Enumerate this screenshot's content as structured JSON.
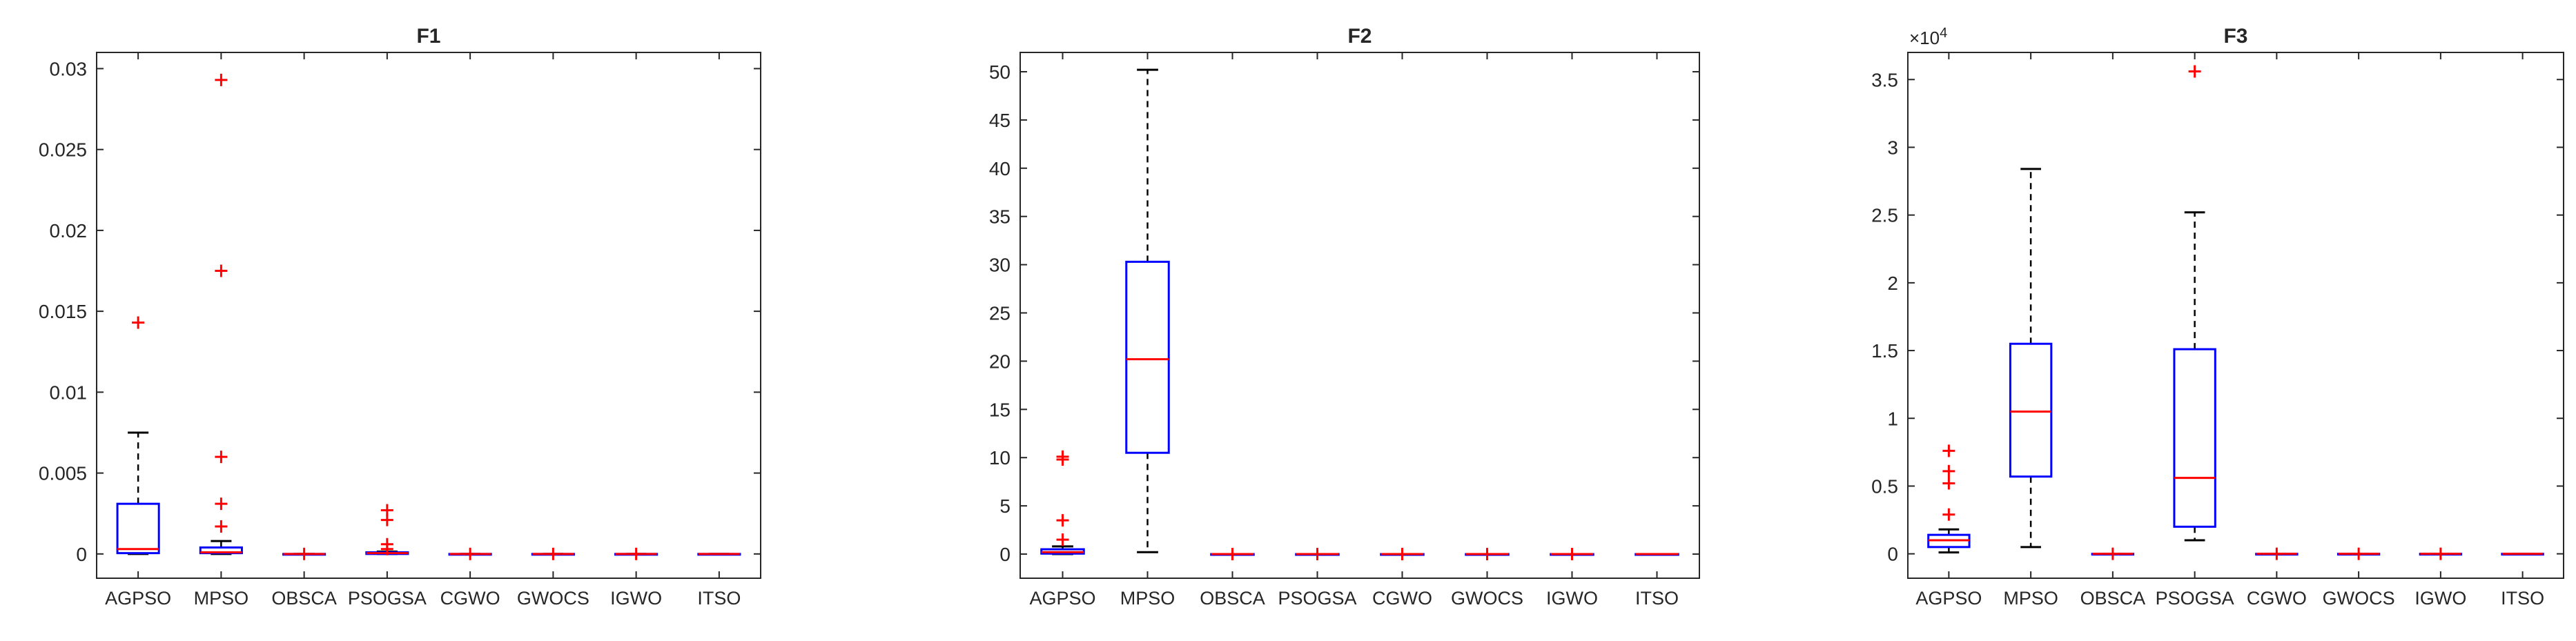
{
  "colors": {
    "box": "#0000ff",
    "median": "#ff0000",
    "outlier": "#ff0000",
    "whisker": "#000000",
    "axis": "#262626"
  },
  "chart_data": [
    {
      "type": "boxplot",
      "title": "F1",
      "xlabel": "",
      "ylabel": "",
      "exponent_label": "",
      "categories": [
        "AGPSO",
        "MPSO",
        "OBSCA",
        "PSOGSA",
        "CGWO",
        "GWOCS",
        "IGWO",
        "ITSO"
      ],
      "ylim": [
        -0.0015,
        0.031
      ],
      "yticks": [
        0,
        0.005,
        0.01,
        0.015,
        0.02,
        0.025,
        0.03
      ],
      "ytick_labels": [
        "0",
        "0.005",
        "0.01",
        "0.015",
        "0.02",
        "0.025",
        "0.03"
      ],
      "grid": false,
      "boxes": [
        {
          "whislo": 0,
          "q1": 5e-05,
          "med": 0.0003,
          "q3": 0.0031,
          "whishi": 0.0075,
          "fliers": [
            0.0143
          ]
        },
        {
          "whislo": 0,
          "q1": 5e-05,
          "med": 0.0001,
          "q3": 0.0004,
          "whishi": 0.0008,
          "fliers": [
            0.0017,
            0.0031,
            0.006,
            0.0175,
            0.0293
          ]
        },
        {
          "whislo": 0,
          "q1": 0,
          "med": 0,
          "q3": 0,
          "whishi": 0,
          "fliers": [
            0
          ]
        },
        {
          "whislo": 0,
          "q1": 0,
          "med": 5e-05,
          "q3": 0.0001,
          "whishi": 0.00015,
          "fliers": [
            0.0003,
            0.0006,
            0.0021,
            0.0027
          ]
        },
        {
          "whislo": 0,
          "q1": 0,
          "med": 0,
          "q3": 0,
          "whishi": 0,
          "fliers": [
            0
          ]
        },
        {
          "whislo": 0,
          "q1": 0,
          "med": 0,
          "q3": 0,
          "whishi": 0,
          "fliers": [
            0
          ]
        },
        {
          "whislo": 0,
          "q1": 0,
          "med": 0,
          "q3": 0,
          "whishi": 0,
          "fliers": [
            0
          ]
        },
        {
          "whislo": 0,
          "q1": 0,
          "med": 0,
          "q3": 0,
          "whishi": 0,
          "fliers": []
        }
      ]
    },
    {
      "type": "boxplot",
      "title": "F2",
      "xlabel": "",
      "ylabel": "",
      "exponent_label": "",
      "categories": [
        "AGPSO",
        "MPSO",
        "OBSCA",
        "PSOGSA",
        "CGWO",
        "GWOCS",
        "IGWO",
        "ITSO"
      ],
      "ylim": [
        -2.5,
        52
      ],
      "yticks": [
        0,
        5,
        10,
        15,
        20,
        25,
        30,
        35,
        40,
        45,
        50
      ],
      "ytick_labels": [
        "0",
        "5",
        "10",
        "15",
        "20",
        "25",
        "30",
        "35",
        "40",
        "45",
        "50"
      ],
      "grid": false,
      "boxes": [
        {
          "whislo": 0,
          "q1": 0.05,
          "med": 0.2,
          "q3": 0.5,
          "whishi": 0.8,
          "fliers": [
            1.5,
            3.5,
            9.8,
            10.1
          ]
        },
        {
          "whislo": 0.2,
          "q1": 10.5,
          "med": 20.2,
          "q3": 30.3,
          "whishi": 50.2,
          "fliers": []
        },
        {
          "whislo": 0,
          "q1": 0,
          "med": 0,
          "q3": 0,
          "whishi": 0,
          "fliers": [
            0
          ]
        },
        {
          "whislo": 0,
          "q1": 0,
          "med": 0,
          "q3": 0,
          "whishi": 0,
          "fliers": [
            0
          ]
        },
        {
          "whislo": 0,
          "q1": 0,
          "med": 0,
          "q3": 0,
          "whishi": 0,
          "fliers": [
            0
          ]
        },
        {
          "whislo": 0,
          "q1": 0,
          "med": 0,
          "q3": 0,
          "whishi": 0,
          "fliers": [
            0
          ]
        },
        {
          "whislo": 0,
          "q1": 0,
          "med": 0,
          "q3": 0,
          "whishi": 0,
          "fliers": [
            0
          ]
        },
        {
          "whislo": 0,
          "q1": 0,
          "med": 0,
          "q3": 0,
          "whishi": 0,
          "fliers": []
        }
      ]
    },
    {
      "type": "boxplot",
      "title": "F3",
      "xlabel": "",
      "ylabel": "",
      "exponent_label": "×10",
      "exponent_power": "4",
      "categories": [
        "AGPSO",
        "MPSO",
        "OBSCA",
        "PSOGSA",
        "CGWO",
        "GWOCS",
        "IGWO",
        "ITSO"
      ],
      "ylim": [
        -1800,
        37000
      ],
      "yticks": [
        0,
        5000,
        10000,
        15000,
        20000,
        25000,
        30000,
        35000
      ],
      "ytick_labels": [
        "0",
        "0.5",
        "1",
        "1.5",
        "2",
        "2.5",
        "3",
        "3.5"
      ],
      "grid": false,
      "boxes": [
        {
          "whislo": 100,
          "q1": 500,
          "med": 1000,
          "q3": 1400,
          "whishi": 1800,
          "fliers": [
            2900,
            5200,
            6100,
            7600
          ]
        },
        {
          "whislo": 500,
          "q1": 5700,
          "med": 10500,
          "q3": 15500,
          "whishi": 28400,
          "fliers": []
        },
        {
          "whislo": 0,
          "q1": 0,
          "med": 0,
          "q3": 0,
          "whishi": 0,
          "fliers": [
            0
          ]
        },
        {
          "whislo": 1000,
          "q1": 2000,
          "med": 5600,
          "q3": 15100,
          "whishi": 25200,
          "fliers": [
            35600
          ]
        },
        {
          "whislo": 0,
          "q1": 0,
          "med": 0,
          "q3": 0,
          "whishi": 0,
          "fliers": [
            0
          ]
        },
        {
          "whislo": 0,
          "q1": 0,
          "med": 0,
          "q3": 0,
          "whishi": 0,
          "fliers": [
            0
          ]
        },
        {
          "whislo": 0,
          "q1": 0,
          "med": 0,
          "q3": 0,
          "whishi": 0,
          "fliers": [
            0
          ]
        },
        {
          "whislo": 0,
          "q1": 0,
          "med": 0,
          "q3": 0,
          "whishi": 0,
          "fliers": []
        }
      ]
    }
  ]
}
